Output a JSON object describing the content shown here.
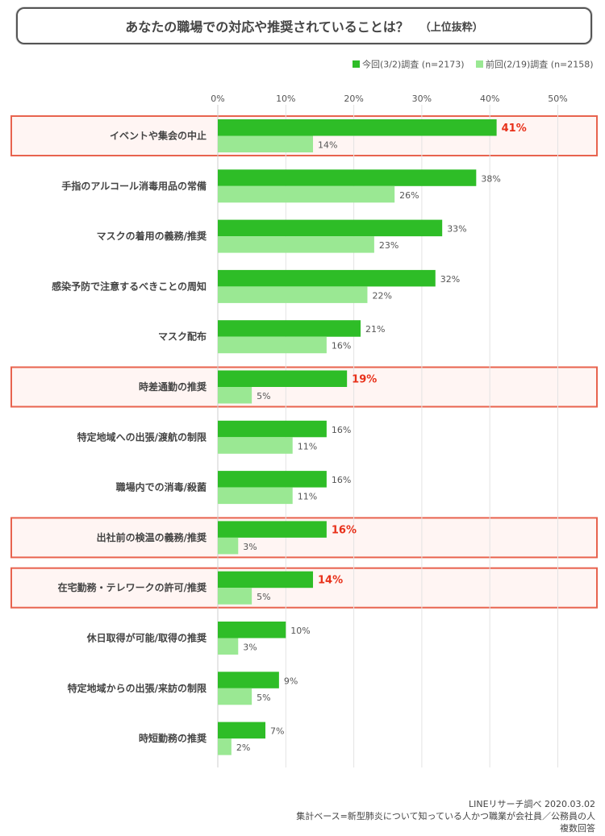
{
  "title": {
    "main": "あなたの職場での対応や推奨されていることは？",
    "sub": "（上位抜粋）"
  },
  "notes": {
    "source": "LINEリサーチ調べ 2020.03.02",
    "base": "集計ベース=新型肺炎について知っている人かつ職業が会社員／公務員の人",
    "multi": "複数回答"
  },
  "colors": {
    "current": "#2ebd27",
    "previous": "#9ae893",
    "highlight_border": "#e8634e",
    "highlight_fill": "#fff5f3",
    "highlight_text": "#e8311a"
  },
  "chart_data": {
    "type": "bar",
    "orientation": "horizontal",
    "categories": [
      "イベントや集会の中止",
      "手指のアルコール消毒用品の常備",
      "マスクの着用の義務/推奨",
      "感染予防で注意するべきことの周知",
      "マスク配布",
      "時差通勤の推奨",
      "特定地域への出張/渡航の制限",
      "職場内での消毒/殺菌",
      "出社前の検温の義務/推奨",
      "在宅勤務・テレワークの許可/推奨",
      "休日取得が可能/取得の推奨",
      "特定地域からの出張/来訪の制限",
      "時短勤務の推奨"
    ],
    "series": [
      {
        "name": "今回(3/2)調査 (n=2173)",
        "values": [
          41,
          38,
          33,
          32,
          21,
          19,
          16,
          16,
          16,
          14,
          10,
          9,
          7
        ],
        "labels": [
          "41%",
          "38%",
          "33%",
          "32%",
          "21%",
          "19%",
          "16%",
          "16%",
          "16%",
          "14%",
          "10%",
          "9%",
          "7%"
        ]
      },
      {
        "name": "前回(2/19)調査 (n=2158)",
        "values": [
          14,
          26,
          23,
          22,
          16,
          5,
          11,
          11,
          3,
          5,
          3,
          5,
          2
        ],
        "labels": [
          "14%",
          "26%",
          "23%",
          "22%",
          "16%",
          "5%",
          "11%",
          "11%",
          "3%",
          "5%",
          "3%",
          "5%",
          "2%"
        ]
      }
    ],
    "highlighted": [
      0,
      5,
      8,
      9
    ],
    "xlim": [
      0,
      50
    ],
    "xticks": [
      "0%",
      "10%",
      "20%",
      "30%",
      "40%",
      "50%"
    ],
    "grid": true,
    "legend_position": "top-right"
  }
}
